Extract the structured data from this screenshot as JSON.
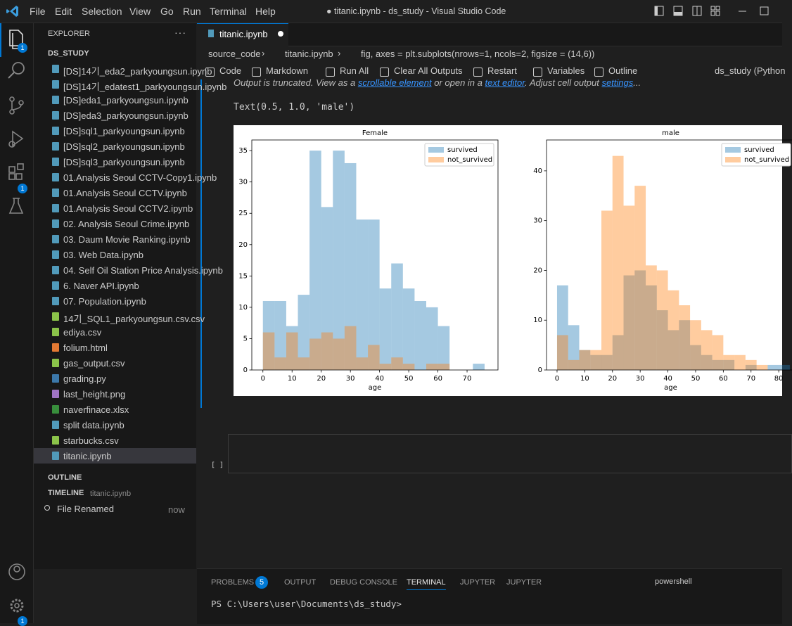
{
  "window_title": "● titanic.ipynb - ds_study - Visual Studio Code",
  "menu": [
    "File",
    "Edit",
    "Selection",
    "View",
    "Go",
    "Run",
    "Terminal",
    "Help"
  ],
  "activity_badges": [
    1,
    1,
    1
  ],
  "explorer": {
    "title": "EXPLORER",
    "folder": "DS_STUDY",
    "selected_index": 25,
    "files": [
      {
        "name": "[DS]14기_eda2_parkyoungsun.ipynb",
        "icon": "notebook"
      },
      {
        "name": "[DS]14기_edatest1_parkyoungsun.ipynb",
        "icon": "notebook"
      },
      {
        "name": "[DS]eda1_parkyoungsun.ipynb",
        "icon": "notebook"
      },
      {
        "name": "[DS]eda3_parkyoungsun.ipynb",
        "icon": "notebook"
      },
      {
        "name": "[DS]sql1_parkyoungsun.ipynb",
        "icon": "notebook"
      },
      {
        "name": "[DS]sql2_parkyoungsun.ipynb",
        "icon": "notebook"
      },
      {
        "name": "[DS]sql3_parkyoungsun.ipynb",
        "icon": "notebook"
      },
      {
        "name": "01.Analysis Seoul CCTV-Copy1.ipynb",
        "icon": "notebook"
      },
      {
        "name": "01.Analysis Seoul CCTV.ipynb",
        "icon": "notebook"
      },
      {
        "name": "01.Analysis Seoul CCTV2.ipynb",
        "icon": "notebook"
      },
      {
        "name": "02. Analysis Seoul Crime.ipynb",
        "icon": "notebook"
      },
      {
        "name": "03. Daum Movie Ranking.ipynb",
        "icon": "notebook"
      },
      {
        "name": "03. Web Data.ipynb",
        "icon": "notebook"
      },
      {
        "name": "04. Self Oil Station Price Analysis.ipynb",
        "icon": "notebook"
      },
      {
        "name": "6. Naver API.ipynb",
        "icon": "notebook"
      },
      {
        "name": "07. Population.ipynb",
        "icon": "notebook"
      },
      {
        "name": "14기_SQL1_parkyoungsun.csv.csv",
        "icon": "csv"
      },
      {
        "name": "ediya.csv",
        "icon": "csv"
      },
      {
        "name": "folium.html",
        "icon": "html"
      },
      {
        "name": "gas_output.csv",
        "icon": "csv"
      },
      {
        "name": "grading.py",
        "icon": "py"
      },
      {
        "name": "last_height.png",
        "icon": "png"
      },
      {
        "name": "naverfinace.xlsx",
        "icon": "xlsx"
      },
      {
        "name": "split data.ipynb",
        "icon": "notebook"
      },
      {
        "name": "starbucks.csv",
        "icon": "csv"
      },
      {
        "name": "titanic.ipynb",
        "icon": "notebook"
      }
    ]
  },
  "outline": "OUTLINE",
  "timeline": {
    "title": "TIMELINE",
    "file": "titanic.ipynb",
    "entry": "File Renamed",
    "time": "now"
  },
  "tab": "titanic.ipynb",
  "breadcrumb": [
    "source_code",
    "titanic.ipynb",
    "fig, axes = plt.subplots(nrows=1, ncols=2, figsize = (14,6))"
  ],
  "toolbar": [
    "Code",
    "Markdown",
    "Run All",
    "Clear All Outputs",
    "Restart",
    "Variables",
    "Outline"
  ],
  "kernel": "ds_study (Python",
  "output": {
    "truncated": [
      "Output is truncated. View as a ",
      "scrollable element",
      " or open in a ",
      "text editor",
      ". Adjust cell output ",
      "settings",
      "..."
    ],
    "text": "Text(0.5, 1.0, 'male')"
  },
  "cell_prompt": "[ ]",
  "panel": {
    "tabs": [
      "PROBLEMS",
      "OUTPUT",
      "DEBUG CONSOLE",
      "TERMINAL",
      "JUPYTER",
      "JUPYTER"
    ],
    "active_tab": 3,
    "problems_count": 5,
    "shell": "powershell",
    "prompt": "PS C:\\Users\\user\\Documents\\ds_study>"
  },
  "chart_data": [
    {
      "type": "histogram",
      "title": "Female",
      "x_label": "age",
      "bins": [
        0,
        4,
        8,
        12,
        16,
        20,
        24,
        28,
        32,
        36,
        40,
        44,
        48,
        52,
        56,
        60,
        64,
        68,
        72,
        76,
        80
      ],
      "series": [
        {
          "name": "survived",
          "color": "#1f77b4",
          "values": [
            11,
            11,
            7,
            12,
            35,
            26,
            35,
            33,
            24,
            24,
            13,
            17,
            13,
            11,
            10,
            7,
            0,
            0,
            1,
            0
          ]
        },
        {
          "name": "not_survived",
          "color": "#ff7f0e",
          "values": [
            6,
            2,
            6,
            2,
            5,
            6,
            5,
            7,
            2,
            4,
            1,
            2,
            1,
            0,
            1,
            1,
            0,
            0,
            0,
            0
          ]
        }
      ],
      "opacity": 0.4,
      "legend": "upper right",
      "xlim": [
        -3.8,
        80.6
      ],
      "xticks": [
        0,
        10,
        20,
        30,
        40,
        50,
        60,
        70
      ],
      "ylim": [
        0,
        36.7
      ],
      "yticks": [
        0,
        5,
        10,
        15,
        20,
        25,
        30,
        35
      ]
    },
    {
      "type": "histogram",
      "title": "male",
      "x_label": "age",
      "bins": [
        0,
        4,
        8,
        12,
        16,
        20,
        24,
        28,
        32,
        36,
        40,
        44,
        48,
        52,
        56,
        60,
        64,
        68,
        72,
        76,
        80,
        84
      ],
      "series": [
        {
          "name": "survived",
          "color": "#1f77b4",
          "values": [
            17,
            9,
            4,
            3,
            3,
            7,
            19,
            20,
            17,
            12,
            8,
            10,
            5,
            3,
            2,
            2,
            0,
            1,
            0,
            1,
            1
          ]
        },
        {
          "name": "not_survived",
          "color": "#ff7f0e",
          "values": [
            7,
            2,
            4,
            4,
            32,
            43,
            33,
            37,
            21,
            20,
            16,
            13,
            10,
            8,
            7,
            3,
            3,
            2,
            1,
            0,
            0
          ]
        }
      ],
      "opacity": 0.4,
      "legend": "upper right",
      "xlim": [
        -3.8,
        85.8
      ],
      "xticks": [
        0,
        10,
        20,
        30,
        40,
        50,
        60,
        70,
        80
      ],
      "ylim": [
        0,
        46.2
      ],
      "yticks": [
        0,
        10,
        20,
        30,
        40
      ]
    }
  ]
}
